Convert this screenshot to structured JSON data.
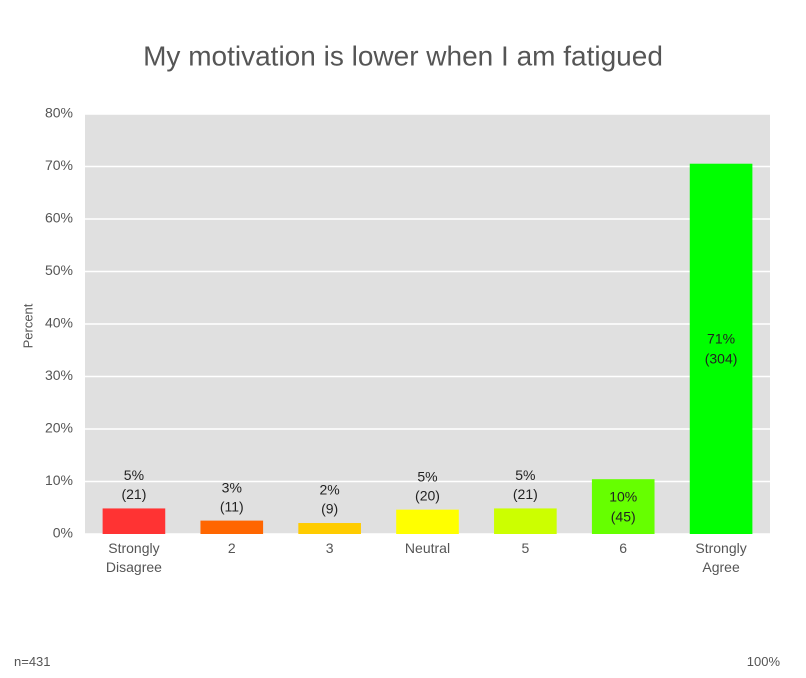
{
  "chart_data": {
    "type": "bar",
    "title": "My motivation is lower when I am fatigued",
    "y_label": "Percent",
    "categories": [
      "Strongly Disagree",
      "2",
      "3",
      "Neutral",
      "5",
      "6",
      "Strongly Agree"
    ],
    "values": [
      4.87,
      2.55,
      2.09,
      4.64,
      4.87,
      10.44,
      70.53
    ],
    "value_labels": [
      "5%",
      "3%",
      "2%",
      "5%",
      "5%",
      "10%",
      "71%"
    ],
    "count_labels": [
      "(21)",
      "(11)",
      "(9)",
      "(20)",
      "(21)",
      "(45)",
      "(304)"
    ],
    "colors": [
      "#ff3333",
      "#ff6600",
      "#ffcc00",
      "#ffff00",
      "#ccff00",
      "#66ff00",
      "#00ff00"
    ],
    "ylim": [
      0,
      80
    ],
    "yticks": [
      {
        "value": 0,
        "label": "0%"
      },
      {
        "value": 10,
        "label": "10%"
      },
      {
        "value": 20,
        "label": "20%"
      },
      {
        "value": 30,
        "label": "30%"
      },
      {
        "value": 40,
        "label": "40%"
      },
      {
        "value": 50,
        "label": "50%"
      },
      {
        "value": 60,
        "label": "60%"
      },
      {
        "value": 70,
        "label": "70%"
      },
      {
        "value": 80,
        "label": "80%"
      }
    ],
    "grid": true,
    "footer_left": "n=431",
    "footer_right": "100%"
  }
}
